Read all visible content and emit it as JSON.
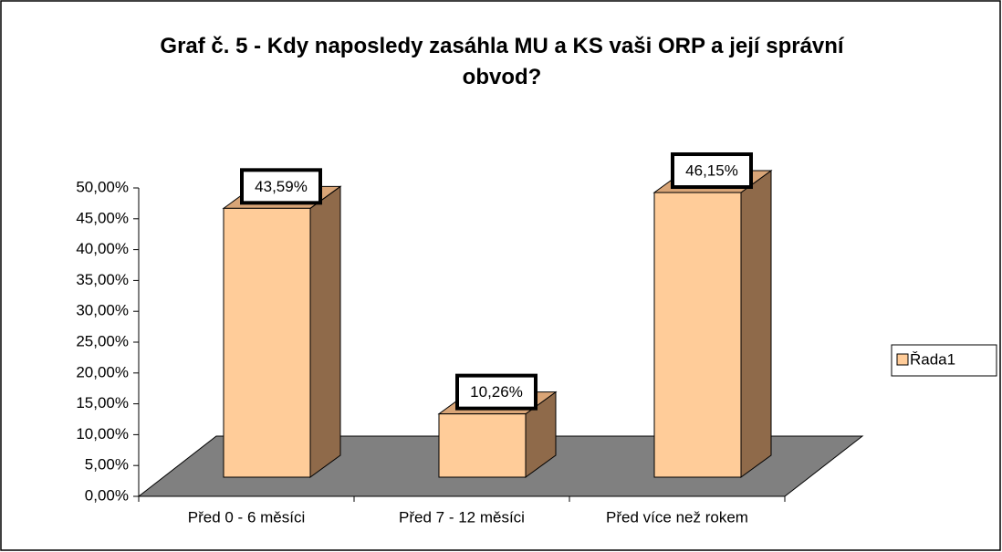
{
  "chart_data": {
    "type": "bar3d",
    "title": "Graf č. 5 - Kdy naposledy zasáhla MU a KS vaši ORP a její správní obvod?",
    "categories": [
      "Před 0 - 6 měsíci",
      "Před 7 - 12 měsíci",
      "Před více než rokem"
    ],
    "series": [
      {
        "name": "Řada1",
        "color": "#ffcc99",
        "values": [
          43.59,
          10.26,
          46.15
        ],
        "value_labels": [
          "43,59%",
          "10,26%",
          "46,15%"
        ]
      }
    ],
    "ylim": [
      0,
      50
    ],
    "yticks": [
      {
        "value": 0,
        "label": "0,00%"
      },
      {
        "value": 5,
        "label": "5,00%"
      },
      {
        "value": 10,
        "label": "10,00%"
      },
      {
        "value": 15,
        "label": "15,00%"
      },
      {
        "value": 20,
        "label": "20,00%"
      },
      {
        "value": 25,
        "label": "25,00%"
      },
      {
        "value": 30,
        "label": "30,00%"
      },
      {
        "value": 35,
        "label": "35,00%"
      },
      {
        "value": 40,
        "label": "40,00%"
      },
      {
        "value": 45,
        "label": "45,00%"
      },
      {
        "value": 50,
        "label": "50,00%"
      }
    ],
    "legend": "right"
  }
}
